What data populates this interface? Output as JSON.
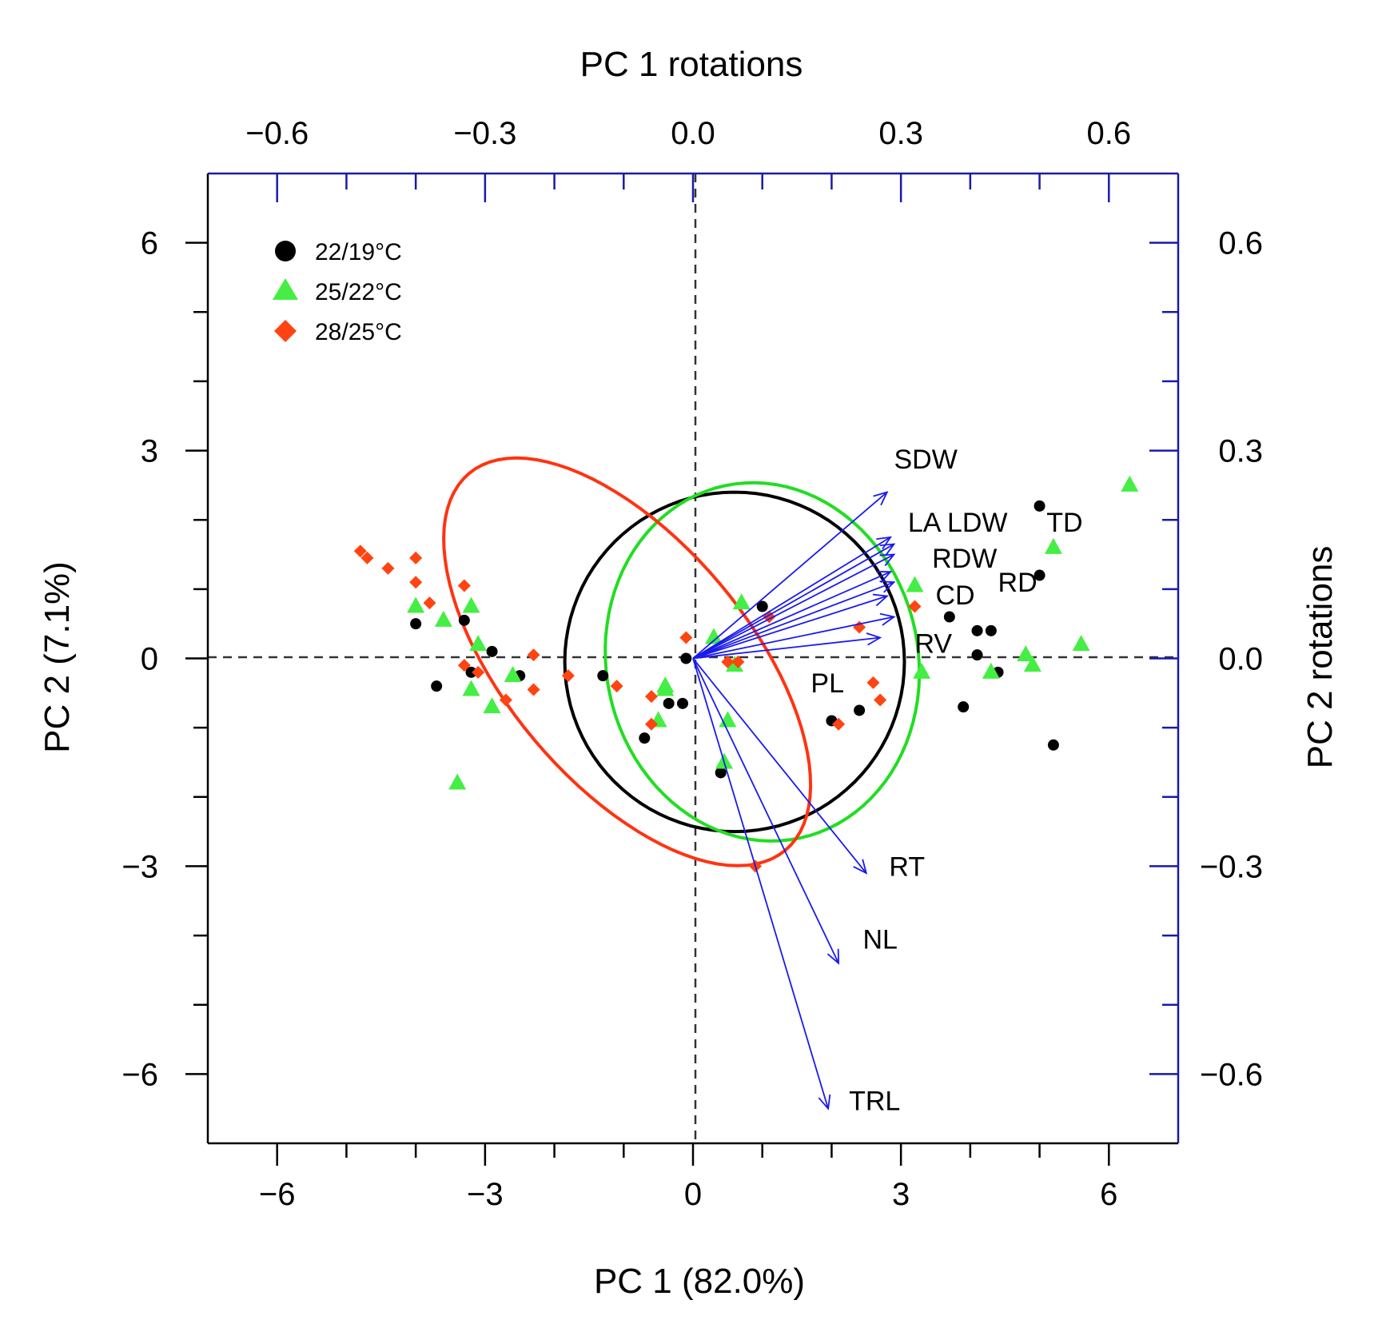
{
  "chart_data": {
    "type": "scatter",
    "title": "",
    "xlabel": "PC 1 (82.0%)",
    "ylabel": "PC 2 (7.1%)",
    "x2label": "PC 1 rotations",
    "y2label": "PC 2 rotations",
    "xlim": [
      -7,
      7
    ],
    "ylim": [
      -7,
      7
    ],
    "x2lim": [
      -0.7,
      0.7
    ],
    "y2lim": [
      -0.7,
      0.7
    ],
    "xticks": [
      -6,
      -3,
      0,
      3,
      6
    ],
    "xtick_labels": [
      "−6",
      "−3",
      "0",
      "3",
      "6"
    ],
    "yticks": [
      -6,
      -3,
      0,
      3,
      6
    ],
    "ytick_labels": [
      "−6",
      "−3",
      "0",
      "3",
      "6"
    ],
    "x2ticks": [
      -0.6,
      -0.3,
      0.0,
      0.3,
      0.6
    ],
    "x2tick_labels": [
      "−0.6",
      "−0.3",
      "0.0",
      "0.3",
      "0.6"
    ],
    "y2ticks": [
      -0.6,
      -0.3,
      0.0,
      0.3,
      0.6
    ],
    "y2tick_labels": [
      "−0.6",
      "−0.3",
      "0.0",
      "0.3",
      "0.6"
    ],
    "legend_position": "top-left",
    "series": [
      {
        "name": "22/19°C",
        "marker": "circle",
        "color": "#000000",
        "points": [
          [
            -4.0,
            0.5
          ],
          [
            -3.7,
            -0.4
          ],
          [
            -3.3,
            0.55
          ],
          [
            -3.2,
            -0.2
          ],
          [
            -2.9,
            0.1
          ],
          [
            -2.5,
            -0.25
          ],
          [
            -1.3,
            -0.25
          ],
          [
            -0.7,
            -1.15
          ],
          [
            -0.35,
            -0.65
          ],
          [
            -0.15,
            -0.65
          ],
          [
            -0.1,
            0.0
          ],
          [
            0.4,
            -1.65
          ],
          [
            1.0,
            0.75
          ],
          [
            2.0,
            -0.9
          ],
          [
            2.4,
            -0.75
          ],
          [
            3.7,
            0.6
          ],
          [
            4.1,
            0.05
          ],
          [
            4.1,
            0.4
          ],
          [
            4.3,
            0.4
          ],
          [
            3.9,
            -0.7
          ],
          [
            4.4,
            -0.2
          ],
          [
            5.0,
            2.2
          ],
          [
            5.0,
            1.2
          ],
          [
            5.2,
            -1.25
          ]
        ]
      },
      {
        "name": "25/22°C",
        "marker": "triangle",
        "color": "#44ee44",
        "points": [
          [
            -4.0,
            0.75
          ],
          [
            -3.6,
            0.55
          ],
          [
            -3.2,
            0.75
          ],
          [
            -3.1,
            0.2
          ],
          [
            -3.2,
            -0.45
          ],
          [
            -2.9,
            -0.7
          ],
          [
            -2.6,
            -0.25
          ],
          [
            -3.4,
            -1.8
          ],
          [
            -0.4,
            -0.4
          ],
          [
            -0.4,
            -0.45
          ],
          [
            -0.5,
            -0.9
          ],
          [
            0.3,
            0.3
          ],
          [
            0.5,
            -0.9
          ],
          [
            0.45,
            -1.5
          ],
          [
            0.6,
            -0.1
          ],
          [
            0.7,
            0.8
          ],
          [
            3.2,
            1.05
          ],
          [
            3.3,
            -0.2
          ],
          [
            5.2,
            1.6
          ],
          [
            4.3,
            -0.2
          ],
          [
            4.8,
            0.05
          ],
          [
            4.9,
            -0.1
          ],
          [
            5.6,
            0.2
          ],
          [
            6.3,
            2.5
          ]
        ]
      },
      {
        "name": "28/25°C",
        "marker": "diamond",
        "color": "#ff4411",
        "points": [
          [
            -4.8,
            1.55
          ],
          [
            -4.7,
            1.45
          ],
          [
            -4.4,
            1.3
          ],
          [
            -4.0,
            1.45
          ],
          [
            -4.0,
            1.1
          ],
          [
            -3.8,
            0.8
          ],
          [
            -3.3,
            1.05
          ],
          [
            -3.3,
            -0.1
          ],
          [
            -3.1,
            -0.2
          ],
          [
            -2.7,
            -0.6
          ],
          [
            -2.3,
            0.05
          ],
          [
            -2.3,
            -0.45
          ],
          [
            -1.8,
            -0.25
          ],
          [
            -1.1,
            -0.4
          ],
          [
            -0.6,
            -0.55
          ],
          [
            -0.6,
            -0.95
          ],
          [
            -0.1,
            0.3
          ],
          [
            0.5,
            -0.05
          ],
          [
            0.65,
            -0.05
          ],
          [
            0.9,
            -3.0
          ],
          [
            1.1,
            0.6
          ],
          [
            2.1,
            -0.95
          ],
          [
            2.4,
            0.45
          ],
          [
            2.6,
            -0.35
          ],
          [
            2.7,
            -0.6
          ],
          [
            3.2,
            0.75
          ]
        ]
      }
    ],
    "ellipses": [
      {
        "series": "22/19°C",
        "color": "#000000",
        "center": [
          0.6,
          -0.05
        ],
        "rx": 2.45,
        "ry": 2.45,
        "angle_deg": 0
      },
      {
        "series": "25/22°C",
        "color": "#22dd22",
        "center": [
          1.0,
          -0.05
        ],
        "rx": 2.25,
        "ry": 2.6,
        "angle_deg": 12
      },
      {
        "series": "28/25°C",
        "color": "#ff3311",
        "center": [
          -0.95,
          -0.05
        ],
        "rx": 3.55,
        "ry": 1.75,
        "angle_deg": -50
      }
    ],
    "loadings": [
      {
        "name": "SDW",
        "pc1": 0.28,
        "pc2": 0.24
      },
      {
        "name": "LA",
        "pc1": 0.285,
        "pc2": 0.175
      },
      {
        "name": "LDW",
        "pc1": 0.29,
        "pc2": 0.165
      },
      {
        "name": "TD",
        "pc1": 0.29,
        "pc2": 0.15
      },
      {
        "name": "RDW",
        "pc1": 0.285,
        "pc2": 0.125
      },
      {
        "name": "RD",
        "pc1": 0.29,
        "pc2": 0.11
      },
      {
        "name": "CD",
        "pc1": 0.28,
        "pc2": 0.09
      },
      {
        "name": "RV",
        "pc1": 0.29,
        "pc2": 0.06
      },
      {
        "name": "PL",
        "pc1": 0.27,
        "pc2": 0.03
      },
      {
        "name": "RT",
        "pc1": 0.25,
        "pc2": -0.31
      },
      {
        "name": "NL",
        "pc1": 0.21,
        "pc2": -0.44
      },
      {
        "name": "TRL",
        "pc1": 0.195,
        "pc2": -0.65
      }
    ],
    "loading_labels": [
      {
        "text": "SDW",
        "x": 0.29,
        "y": 0.288
      },
      {
        "text": "LA LDW",
        "x": 0.31,
        "y": 0.197
      },
      {
        "text": "TD",
        "x": 0.51,
        "y": 0.197
      },
      {
        "text": "RDW",
        "x": 0.345,
        "y": 0.145
      },
      {
        "text": "RD",
        "x": 0.44,
        "y": 0.11
      },
      {
        "text": "CD",
        "x": 0.35,
        "y": 0.092
      },
      {
        "text": "RV",
        "x": 0.32,
        "y": 0.022
      },
      {
        "text": "PL",
        "x": 0.17,
        "y": -0.035
      },
      {
        "text": "RT",
        "x": 0.283,
        "y": -0.3
      },
      {
        "text": "NL",
        "x": 0.245,
        "y": -0.405
      },
      {
        "text": "TRL",
        "x": 0.225,
        "y": -0.638
      }
    ]
  }
}
